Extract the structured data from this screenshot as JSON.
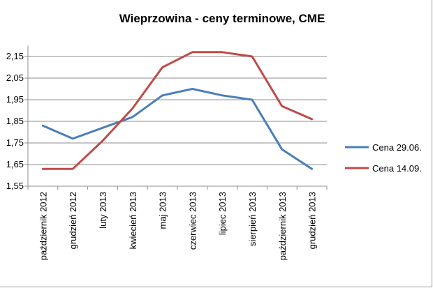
{
  "chart_data": {
    "type": "line",
    "title": "Wieprzowina - ceny terminowe, CME",
    "xlabel": "",
    "ylabel": "",
    "categories": [
      "październik 2012",
      "grudzień 2012",
      "luty 2013",
      "kwiecień 2013",
      "maj 2013",
      "czerwiec 2013",
      "lipiec 2013",
      "sierpień 2013",
      "październik 2013",
      "grudzień 2013"
    ],
    "y_tick_labels": [
      "1,55",
      "1,65",
      "1,75",
      "1,85",
      "1,95",
      "2,05",
      "2,15"
    ],
    "ylim": [
      1.55,
      2.2
    ],
    "grid": true,
    "legend_position": "right",
    "series": [
      {
        "name": "Cena 29.06.",
        "color": "#4a7ebb",
        "values": [
          1.83,
          1.77,
          1.82,
          1.87,
          1.97,
          2.0,
          1.97,
          1.95,
          1.72,
          1.63
        ]
      },
      {
        "name": "Cena 14.09.",
        "color": "#be4b48",
        "values": [
          1.63,
          1.63,
          1.76,
          1.91,
          2.1,
          2.17,
          2.17,
          2.15,
          1.92,
          1.86
        ]
      }
    ]
  }
}
